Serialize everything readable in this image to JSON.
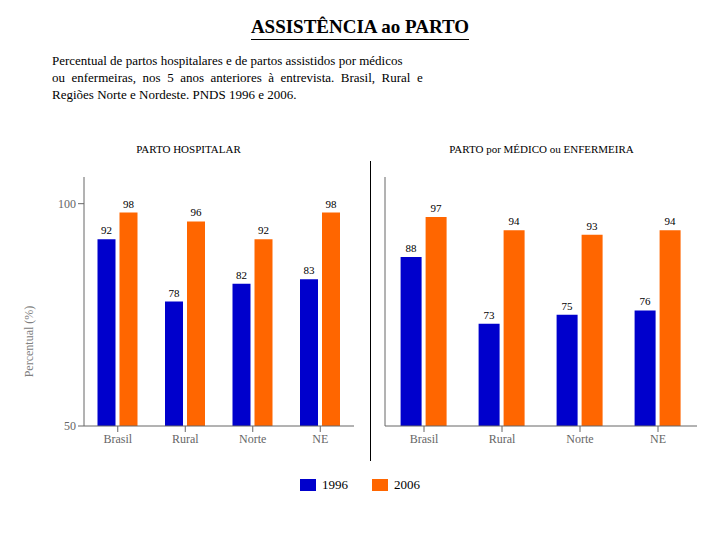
{
  "title": "ASSISTÊNCIA ao PARTO",
  "subtitle": [
    "Percentual de partos hospitalares e de partos assistidos por médicos",
    "ou  enfermeiras,  nos  5  anos  anteriores  à  entrevista.  Brasil,  Rural  e",
    "Regiões Norte e Nordeste. PNDS 1996 e 2006."
  ],
  "chart_data": [
    {
      "type": "bar",
      "title": "PARTO HOSPITALAR",
      "categories": [
        "Brasil",
        "Rural",
        "Norte",
        "NE"
      ],
      "series": [
        {
          "name": "1996",
          "color": "#0000CC",
          "values": [
            92,
            78,
            82,
            83
          ]
        },
        {
          "name": "2006",
          "color": "#FF6600",
          "values": [
            98,
            96,
            92,
            98
          ]
        }
      ],
      "ylabel": "Percentual (%)",
      "ylim": [
        50,
        106
      ],
      "yticks": [
        50,
        100
      ],
      "grid": false,
      "data_labels": true,
      "legend": "bottom"
    },
    {
      "type": "bar",
      "title": "PARTO por MÉDICO ou ENFERMEIRA",
      "categories": [
        "Brasil",
        "Rural",
        "Norte",
        "NE"
      ],
      "series": [
        {
          "name": "1996",
          "color": "#0000CC",
          "values": [
            88,
            73,
            75,
            76
          ]
        },
        {
          "name": "2006",
          "color": "#FF6600",
          "values": [
            97,
            94,
            93,
            94
          ]
        }
      ],
      "ylim": [
        50,
        106
      ],
      "yticks": [
        50,
        100
      ],
      "grid": false,
      "data_labels": true,
      "tick_labels": "x"
    }
  ]
}
